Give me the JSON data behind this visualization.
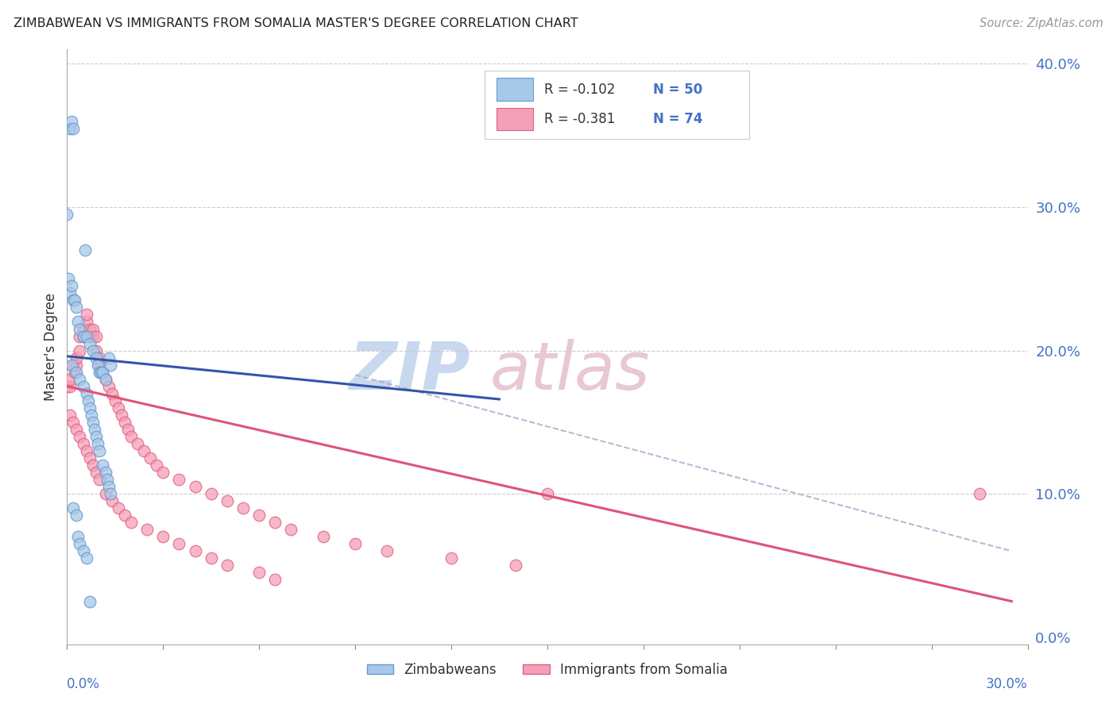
{
  "title": "ZIMBABWEAN VS IMMIGRANTS FROM SOMALIA MASTER'S DEGREE CORRELATION CHART",
  "source": "Source: ZipAtlas.com",
  "ylabel": "Master's Degree",
  "xlim": [
    0.0,
    0.3
  ],
  "ylim": [
    -0.005,
    0.41
  ],
  "legend_r1": "-0.102",
  "legend_n1": "50",
  "legend_r2": "-0.381",
  "legend_n2": "74",
  "blue_fill": "#a8c8e8",
  "blue_edge": "#6699cc",
  "pink_fill": "#f4a0b8",
  "pink_edge": "#e06080",
  "blue_line_color": "#3355aa",
  "pink_line_color": "#dd5577",
  "dash_color": "#aaaacc",
  "text_color": "#4472c4",
  "label_color": "#333333",
  "source_color": "#999999",
  "grid_color": "#cccccc",
  "watermark_zip_color": "#c8d8ee",
  "watermark_atlas_color": "#e8c8d4",
  "dot_size": 110,
  "blue_line_x_end": 0.135,
  "pink_line_x_end": 0.295,
  "dash_line_y_start": 0.183,
  "dash_line_y_end": 0.06,
  "blue_line_y_start": 0.196,
  "blue_line_y_end": 0.166,
  "pink_line_y_start": 0.175,
  "pink_line_y_end": 0.025,
  "zim_x": [
    0.001,
    0.0015,
    0.002,
    0.0,
    0.0005,
    0.001,
    0.0015,
    0.002,
    0.0025,
    0.003,
    0.0035,
    0.004,
    0.005,
    0.0055,
    0.006,
    0.007,
    0.008,
    0.009,
    0.0095,
    0.01,
    0.0105,
    0.011,
    0.012,
    0.013,
    0.0135,
    0.0015,
    0.003,
    0.004,
    0.005,
    0.006,
    0.0065,
    0.007,
    0.0075,
    0.008,
    0.0085,
    0.009,
    0.0095,
    0.01,
    0.011,
    0.012,
    0.0125,
    0.013,
    0.0135,
    0.002,
    0.003,
    0.0035,
    0.004,
    0.005,
    0.006,
    0.007
  ],
  "zim_y": [
    0.355,
    0.36,
    0.355,
    0.295,
    0.25,
    0.24,
    0.245,
    0.235,
    0.235,
    0.23,
    0.22,
    0.215,
    0.21,
    0.27,
    0.21,
    0.205,
    0.2,
    0.195,
    0.19,
    0.185,
    0.185,
    0.185,
    0.18,
    0.195,
    0.19,
    0.19,
    0.185,
    0.18,
    0.175,
    0.17,
    0.165,
    0.16,
    0.155,
    0.15,
    0.145,
    0.14,
    0.135,
    0.13,
    0.12,
    0.115,
    0.11,
    0.105,
    0.1,
    0.09,
    0.085,
    0.07,
    0.065,
    0.06,
    0.055,
    0.025
  ],
  "som_x": [
    0.0,
    0.001,
    0.001,
    0.002,
    0.0025,
    0.003,
    0.003,
    0.004,
    0.004,
    0.005,
    0.005,
    0.006,
    0.006,
    0.007,
    0.007,
    0.008,
    0.008,
    0.009,
    0.009,
    0.01,
    0.01,
    0.011,
    0.012,
    0.013,
    0.014,
    0.015,
    0.016,
    0.017,
    0.018,
    0.019,
    0.02,
    0.022,
    0.024,
    0.026,
    0.028,
    0.03,
    0.035,
    0.04,
    0.045,
    0.05,
    0.055,
    0.06,
    0.065,
    0.07,
    0.08,
    0.09,
    0.1,
    0.12,
    0.14,
    0.15,
    0.001,
    0.002,
    0.003,
    0.004,
    0.005,
    0.006,
    0.007,
    0.008,
    0.009,
    0.01,
    0.012,
    0.014,
    0.016,
    0.018,
    0.02,
    0.025,
    0.03,
    0.035,
    0.04,
    0.045,
    0.05,
    0.06,
    0.065,
    0.285
  ],
  "som_y": [
    0.175,
    0.175,
    0.18,
    0.19,
    0.185,
    0.19,
    0.195,
    0.2,
    0.21,
    0.21,
    0.215,
    0.22,
    0.225,
    0.215,
    0.21,
    0.21,
    0.215,
    0.21,
    0.2,
    0.195,
    0.19,
    0.185,
    0.18,
    0.175,
    0.17,
    0.165,
    0.16,
    0.155,
    0.15,
    0.145,
    0.14,
    0.135,
    0.13,
    0.125,
    0.12,
    0.115,
    0.11,
    0.105,
    0.1,
    0.095,
    0.09,
    0.085,
    0.08,
    0.075,
    0.07,
    0.065,
    0.06,
    0.055,
    0.05,
    0.1,
    0.155,
    0.15,
    0.145,
    0.14,
    0.135,
    0.13,
    0.125,
    0.12,
    0.115,
    0.11,
    0.1,
    0.095,
    0.09,
    0.085,
    0.08,
    0.075,
    0.07,
    0.065,
    0.06,
    0.055,
    0.05,
    0.045,
    0.04,
    0.1
  ]
}
